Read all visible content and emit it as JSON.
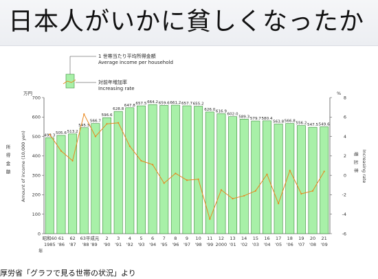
{
  "page": {
    "title": "日本人がいかに貧しくなったか",
    "source": "厚労省「グラフで見る世帯の状況」より"
  },
  "legend": {
    "bar_label_ja": "1 世帯当たり平均所得金額",
    "bar_label_en": "Average income per household",
    "line_label_ja": "対前年増加率",
    "line_label_en": "Increasing rate"
  },
  "colors": {
    "bar_fill": "#a8f0a8",
    "bar_stroke": "#3a8a3a",
    "line": "#e8871e",
    "axis": "#555555"
  },
  "chart_data": {
    "type": "bar",
    "title": "",
    "left_axis": {
      "unit_label": "万円",
      "label_ja": "所得金額",
      "label_en": "Amount of income (10,000 yen)",
      "ylim": [
        0,
        700
      ],
      "ticks": [
        "0",
        "100",
        "200",
        "300",
        "400",
        "500",
        "600",
        "700"
      ]
    },
    "right_axis": {
      "unit_label": "%",
      "label_ja": "増加率",
      "label_en": "Increasing rate",
      "ylim": [
        -6,
        8
      ],
      "ticks": [
        "-6",
        "-4",
        "-2",
        "0",
        "2",
        "4",
        "6",
        "8"
      ]
    },
    "categories_top": [
      "昭和60",
      "61",
      "62",
      "63平成元",
      "2",
      "3",
      "4",
      "5",
      "6",
      "7",
      "8",
      "9",
      "10",
      "11",
      "12",
      "13",
      "14",
      "15",
      "16",
      "17",
      "18",
      "19",
      "20",
      "21"
    ],
    "categories_bottom": [
      "1985",
      "'86",
      "'87",
      "'88 '89",
      "'90",
      "'91",
      "'92",
      "'93",
      "'94",
      "'95",
      "'96",
      "'97",
      "'98",
      "'99",
      "2000",
      "'01",
      "'02",
      "'03",
      "'04",
      "'05",
      "'06",
      "'07",
      "'08",
      "'09"
    ],
    "year_label": "年",
    "series": [
      {
        "name": "1 世帯当たり平均所得金額",
        "values": [
          493.3,
          505.6,
          513.2,
          545.3,
          566.7,
          596.6,
          628.8,
          647.8,
          657.5,
          664.2,
          659.6,
          661.2,
          657.7,
          655.2,
          626.0,
          616.9,
          602.0,
          589.3,
          579.7,
          580.4,
          563.8,
          566.8,
          556.2,
          547.5,
          549.6
        ],
        "labels": [
          "493.3",
          "505.6",
          "513.2",
          "545.3",
          "566.7",
          "596.6",
          "628.8",
          "647.8",
          "657.5",
          "664.2",
          "659.6",
          "661.2",
          "657.7",
          "655.2",
          "626.0",
          "616.9",
          "602.0",
          "589.3",
          "579.7",
          "580.4",
          "563.8",
          "566.8",
          "556.2",
          "547.5",
          "549.6"
        ]
      },
      {
        "name": "対前年増加率",
        "values": [
          4.2,
          2.5,
          1.5,
          6.3,
          4.0,
          5.3,
          5.4,
          3.0,
          1.5,
          1.1,
          -0.8,
          0.2,
          -0.5,
          -0.4,
          -4.5,
          -1.5,
          -2.4,
          -2.1,
          -1.6,
          0.1,
          -2.9,
          0.5,
          -1.9,
          -1.6,
          0.4
        ]
      }
    ]
  }
}
